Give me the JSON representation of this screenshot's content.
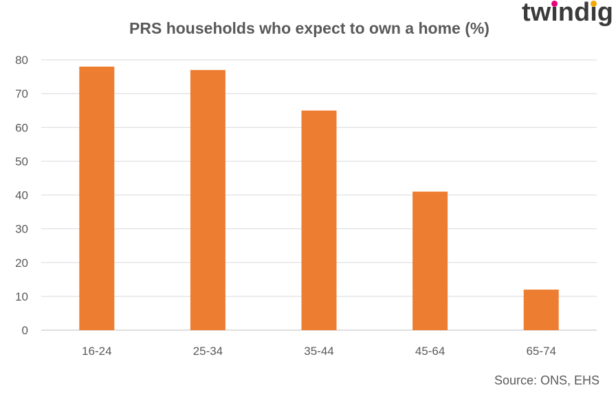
{
  "brand": {
    "logo_text": "twindig",
    "dot_colors": [
      "#e5007d",
      "#f5a800"
    ]
  },
  "source_note": "Source: ONS, EHS",
  "colors": {
    "bar": "#ED7D31",
    "grid": "#D9D9D9",
    "text": "#595959"
  },
  "chart_data": {
    "type": "bar",
    "title": "PRS households who expect to own a home (%)",
    "xlabel": "",
    "ylabel": "",
    "categories": [
      "16-24",
      "25-34",
      "35-44",
      "45-64",
      "65-74"
    ],
    "values": [
      78,
      77,
      65,
      41,
      12
    ],
    "ylim": [
      0,
      80
    ],
    "yticks": [
      0,
      10,
      20,
      30,
      40,
      50,
      60,
      70,
      80
    ],
    "grid": true,
    "legend": "none"
  }
}
